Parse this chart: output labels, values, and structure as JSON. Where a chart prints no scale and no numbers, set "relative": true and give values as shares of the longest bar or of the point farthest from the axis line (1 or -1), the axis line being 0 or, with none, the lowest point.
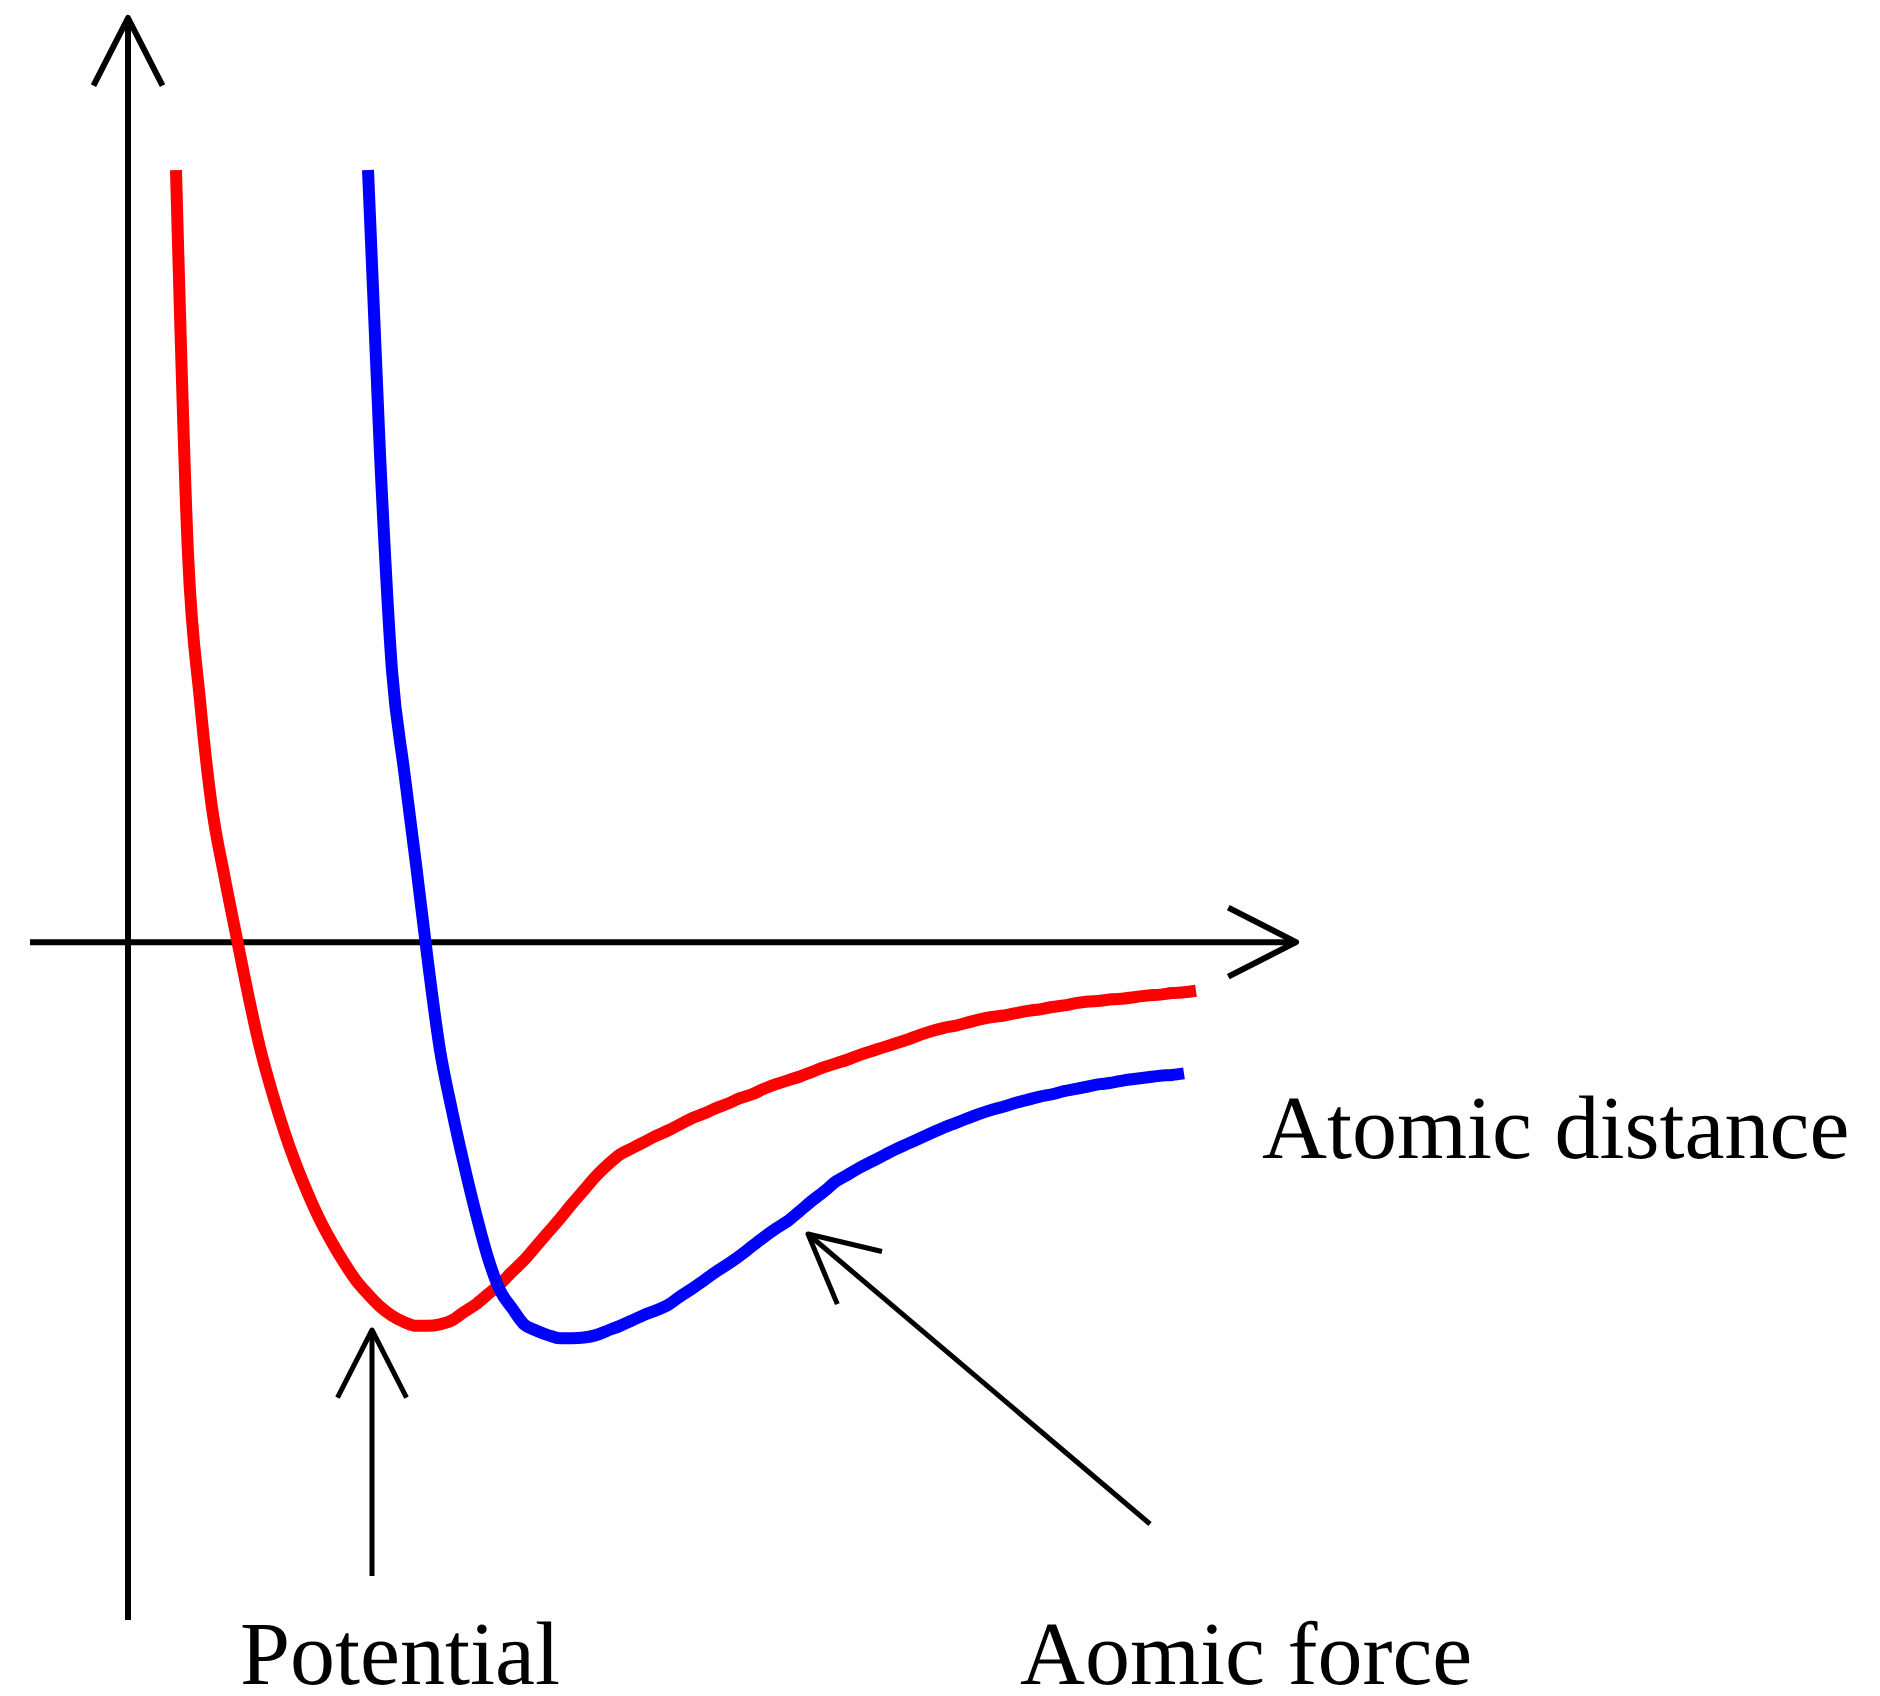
{
  "chart_data": {
    "type": "line",
    "relative": true,
    "xlabel": "Atomic distance",
    "categories": [
      null,
      null,
      null,
      null,
      null,
      null,
      null,
      null,
      null,
      null,
      null,
      null,
      null,
      null,
      null,
      null,
      null,
      null,
      null,
      null,
      null,
      null,
      null,
      null,
      null,
      null,
      null,
      null,
      null,
      null,
      null,
      null,
      null,
      null,
      null,
      null,
      null,
      null,
      null,
      null,
      null,
      null,
      null,
      null,
      null,
      null,
      null,
      null,
      null,
      null,
      null,
      null,
      null,
      null,
      null,
      null,
      null,
      null,
      null,
      null,
      null,
      null,
      null,
      null,
      null,
      null,
      null,
      null,
      null,
      null,
      null,
      null,
      null,
      null,
      null,
      null,
      null,
      null,
      null,
      null,
      null,
      null,
      null,
      null,
      null,
      null
    ],
    "series": [
      {
        "name": "Potential",
        "color": "#ff0000",
        "values": [
          1.0,
          0.503,
          0.313,
          0.174,
          0.088,
          0.01,
          -0.067,
          -0.137,
          -0.194,
          -0.244,
          -0.288,
          -0.326,
          -0.36,
          -0.389,
          -0.415,
          -0.438,
          -0.456,
          -0.472,
          -0.484,
          -0.492,
          -0.497,
          -0.497,
          -0.495,
          -0.49,
          -0.479,
          -0.469,
          -0.456,
          -0.443,
          -0.427,
          -0.412,
          -0.394,
          -0.376,
          -0.358,
          -0.339,
          -0.321,
          -0.303,
          -0.288,
          -0.275,
          -0.267,
          -0.259,
          -0.251,
          -0.244,
          -0.236,
          -0.228,
          -0.222,
          -0.215,
          -0.209,
          -0.202,
          -0.197,
          -0.19,
          -0.184,
          -0.179,
          -0.174,
          -0.168,
          -0.162,
          -0.157,
          -0.152,
          -0.146,
          -0.141,
          -0.136,
          -0.131,
          -0.126,
          -0.12,
          -0.115,
          -0.111,
          -0.108,
          -0.104,
          -0.1,
          -0.097,
          -0.095,
          -0.092,
          -0.089,
          -0.087,
          -0.084,
          -0.082,
          -0.079,
          -0.077,
          -0.076,
          -0.074,
          -0.073,
          -0.071,
          -0.069,
          -0.068,
          -0.066,
          -0.065,
          -0.063
        ]
      },
      {
        "name": "Aomic force",
        "color": "#0000ff",
        "values": [
          null,
          null,
          null,
          null,
          null,
          null,
          null,
          null,
          null,
          null,
          null,
          null,
          null,
          null,
          null,
          null,
          1.0,
          0.632,
          0.352,
          0.223,
          0.101,
          -0.026,
          -0.14,
          -0.218,
          -0.288,
          -0.352,
          -0.409,
          -0.451,
          -0.474,
          -0.495,
          -0.503,
          -0.509,
          -0.513,
          -0.513,
          -0.512,
          -0.509,
          -0.503,
          -0.497,
          -0.49,
          -0.483,
          -0.477,
          -0.47,
          -0.459,
          -0.449,
          -0.438,
          -0.427,
          -0.417,
          -0.406,
          -0.394,
          -0.382,
          -0.371,
          -0.361,
          -0.348,
          -0.335,
          -0.323,
          -0.31,
          -0.301,
          -0.292,
          -0.284,
          -0.276,
          -0.268,
          -0.261,
          -0.254,
          -0.247,
          -0.24,
          -0.234,
          -0.228,
          -0.222,
          -0.217,
          -0.213,
          -0.208,
          -0.204,
          -0.2,
          -0.197,
          -0.193,
          -0.19,
          -0.187,
          -0.184,
          -0.182,
          -0.179,
          -0.177,
          -0.175,
          -0.173,
          -0.172,
          -0.17,
          null
        ]
      }
    ]
  }
}
